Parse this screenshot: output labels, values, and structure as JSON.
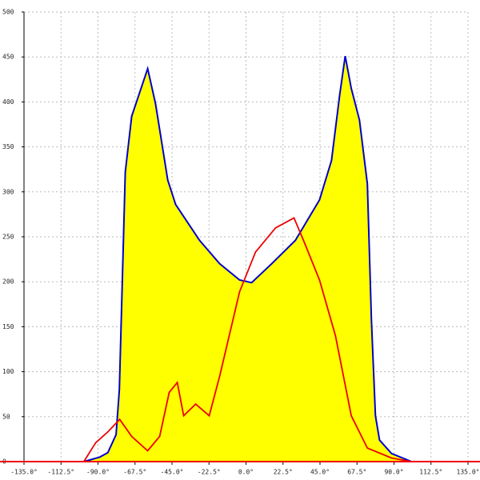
{
  "chart_data": {
    "type": "area",
    "xlim": [
      -135,
      135
    ],
    "ylim": [
      0,
      500
    ],
    "xticks": [
      {
        "value": -135,
        "label": "-135.0°"
      },
      {
        "value": -112.5,
        "label": "-112.5°"
      },
      {
        "value": -90,
        "label": "-90.0°"
      },
      {
        "value": -67.5,
        "label": "-67.5°"
      },
      {
        "value": -45,
        "label": "-45.0°"
      },
      {
        "value": -22.5,
        "label": "-22.5°"
      },
      {
        "value": 0,
        "label": "0.0°"
      },
      {
        "value": 22.5,
        "label": "22.5°"
      },
      {
        "value": 45,
        "label": "45.0°"
      },
      {
        "value": 67.5,
        "label": "67.5°"
      },
      {
        "value": 90,
        "label": "90.0°"
      },
      {
        "value": 112.5,
        "label": "112.5°"
      },
      {
        "value": 135,
        "label": "135.0°"
      }
    ],
    "yticks": [
      0,
      50,
      100,
      150,
      200,
      250,
      300,
      350,
      400,
      450,
      500
    ],
    "grid": true,
    "series": [
      {
        "type": "area",
        "color": "#0000cc",
        "fill": "#ffff00",
        "x": [
          -98.6,
          -89,
          -84,
          -79,
          -77,
          -73.4,
          -69.5,
          -59.8,
          -55,
          -47.6,
          -42.8,
          -28.2,
          -16,
          -3.9,
          3.4,
          15.6,
          30,
          44.7,
          52,
          56.9,
          60.3,
          64,
          69,
          73.8,
          76.3,
          78.7,
          81.2,
          88.5,
          100.6
        ],
        "values": [
          0,
          5,
          10,
          30,
          80,
          322,
          384,
          437,
          398,
          313,
          286,
          246,
          220,
          202,
          199,
          220,
          246,
          291,
          335,
          407,
          451,
          415,
          380,
          309,
          157,
          51,
          24,
          9,
          0
        ]
      },
      {
        "type": "line",
        "color": "#ee0000",
        "x": [
          -98.6,
          -91.4,
          -84,
          -76.8,
          -69.5,
          -59.8,
          -52.5,
          -46.7,
          -41.8,
          -37.9,
          -30.6,
          -22.4,
          -16,
          -3.9,
          5.8,
          18,
          29.2,
          35,
          44.7,
          54.4,
          64,
          73.8,
          88.5,
          100.6
        ],
        "values": [
          0,
          21,
          33,
          47,
          28,
          12,
          28,
          77,
          88,
          51,
          64,
          51,
          95,
          189,
          233,
          260,
          271,
          246,
          202,
          140,
          51,
          15,
          4,
          0
        ]
      }
    ]
  }
}
